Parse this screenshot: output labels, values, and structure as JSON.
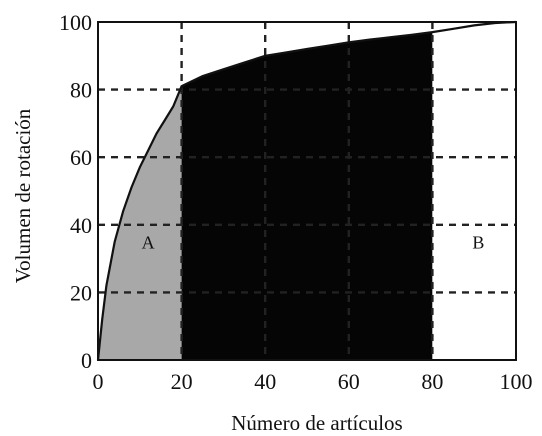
{
  "chart_data": {
    "type": "area",
    "title": "",
    "xlabel": "Número de artículos",
    "ylabel": "Volumen de rotación",
    "xlim": [
      0,
      100
    ],
    "ylim": [
      0,
      100
    ],
    "x_ticks": [
      "0",
      "20",
      "40",
      "60",
      "80",
      "100"
    ],
    "y_ticks": [
      "0",
      "20",
      "40",
      "60",
      "80",
      "100"
    ],
    "grid": "dashed at ticks",
    "series": [
      {
        "x": [
          0,
          1,
          2,
          4,
          6,
          8,
          10,
          12,
          14,
          16,
          18,
          20,
          25,
          30,
          35,
          40,
          45,
          50,
          55,
          60,
          65,
          70,
          75,
          80,
          85,
          90,
          95,
          100
        ],
        "y": [
          0,
          12,
          22,
          35,
          44,
          51,
          57,
          62,
          67,
          71,
          75,
          81,
          84,
          86,
          88,
          90,
          91,
          92,
          93,
          94,
          94.8,
          95.5,
          96.2,
          97,
          98,
          99,
          99.7,
          100
        ]
      }
    ],
    "regions": [
      {
        "label": "A",
        "from": 0,
        "to": 20,
        "fill": "#a8a8a8"
      },
      {
        "label": "",
        "from": 20,
        "to": 80,
        "fill": "#050505"
      },
      {
        "label": "B",
        "from": 80,
        "to": 100,
        "fill": "#ffffff"
      }
    ],
    "annotations": [
      {
        "text": "A",
        "x": 12,
        "y": 33
      },
      {
        "text": "B",
        "x": 91,
        "y": 33
      }
    ]
  }
}
